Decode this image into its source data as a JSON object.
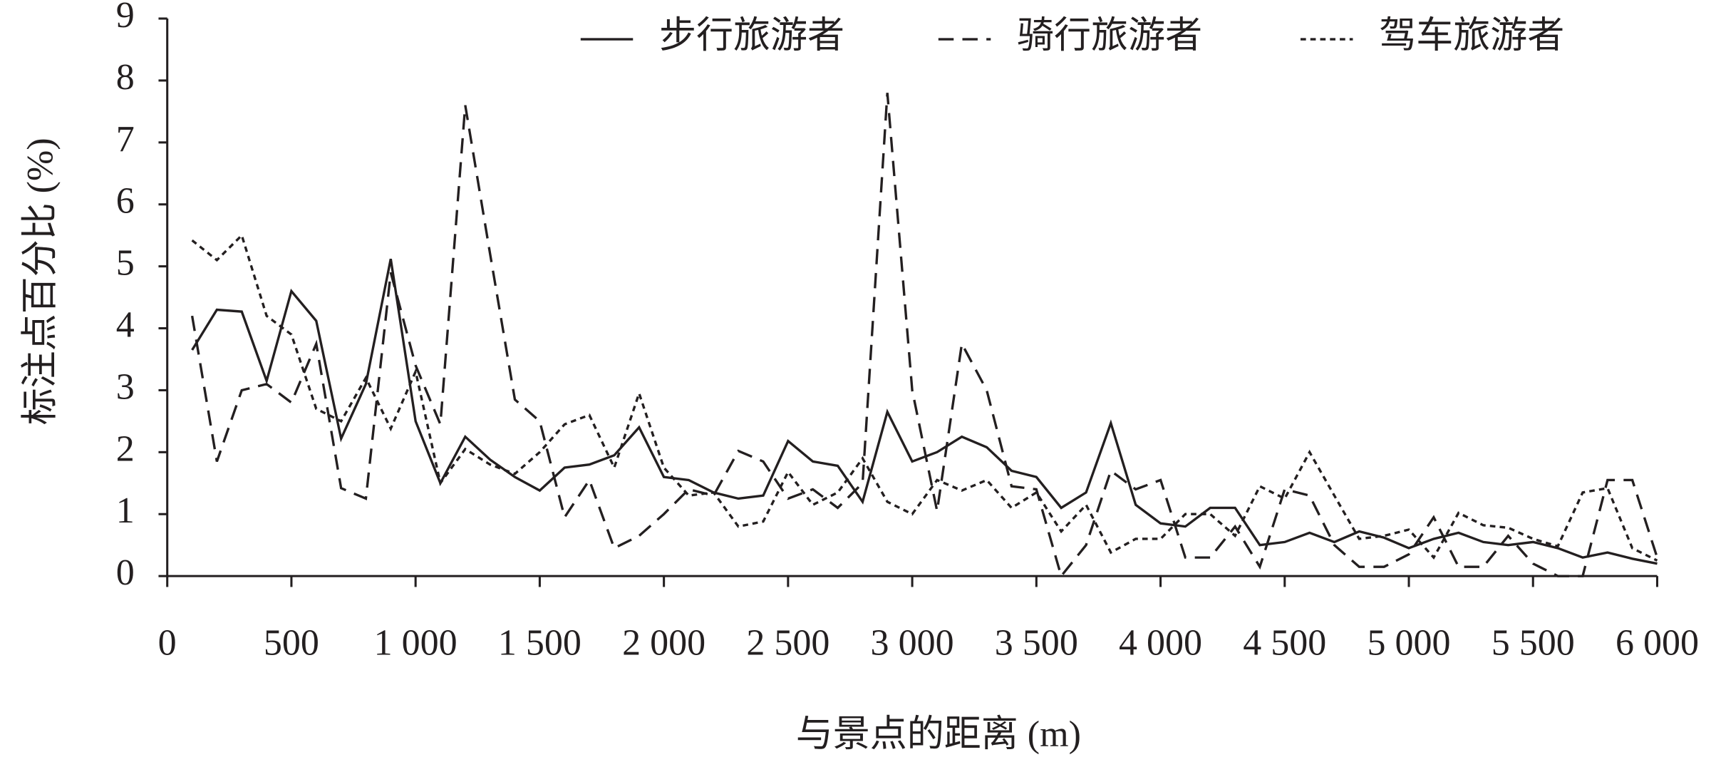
{
  "chart_data": {
    "type": "line",
    "xlabel": "与景点的距离 (m)",
    "ylabel": "标注点百分比 (%)",
    "x": [
      100,
      200,
      300,
      400,
      500,
      600,
      700,
      800,
      900,
      1000,
      1100,
      1200,
      1300,
      1400,
      1500,
      1600,
      1700,
      1800,
      1900,
      2000,
      2100,
      2200,
      2300,
      2400,
      2500,
      2600,
      2700,
      2800,
      2900,
      3000,
      3100,
      3200,
      3300,
      3400,
      3500,
      3600,
      3700,
      3800,
      3900,
      4000,
      4100,
      4200,
      4300,
      4400,
      4500,
      4600,
      4700,
      4800,
      4900,
      5000,
      5100,
      5200,
      5300,
      5400,
      5500,
      5600,
      5700,
      5800,
      5900,
      6000
    ],
    "series": [
      {
        "name": "步行旅游者",
        "color": "#231f20",
        "dash": "solid",
        "values": [
          3.65,
          4.3,
          4.27,
          3.15,
          4.6,
          4.12,
          2.22,
          3.1,
          5.12,
          2.5,
          1.5,
          2.25,
          1.88,
          1.6,
          1.38,
          1.75,
          1.8,
          1.95,
          2.4,
          1.6,
          1.55,
          1.35,
          1.25,
          1.3,
          2.18,
          1.85,
          1.78,
          1.2,
          2.65,
          1.85,
          2.0,
          2.25,
          2.08,
          1.7,
          1.6,
          1.1,
          1.35,
          2.47,
          1.15,
          0.85,
          0.8,
          1.1,
          1.1,
          0.5,
          0.55,
          0.7,
          0.55,
          0.72,
          0.62,
          0.45,
          0.6,
          0.7,
          0.55,
          0.5,
          0.55,
          0.45,
          0.3,
          0.38,
          0.28,
          0.2
        ]
      },
      {
        "name": "骑行旅游者",
        "color": "#231f20",
        "dash": "dashed",
        "values": [
          4.2,
          1.85,
          3.0,
          3.1,
          2.8,
          3.75,
          1.42,
          1.25,
          4.9,
          3.4,
          2.45,
          7.6,
          5.2,
          2.85,
          2.5,
          0.95,
          1.55,
          0.45,
          0.65,
          1.0,
          1.4,
          1.3,
          2.02,
          1.85,
          1.25,
          1.4,
          1.1,
          1.5,
          7.8,
          3.0,
          1.05,
          3.75,
          3.0,
          1.45,
          1.4,
          0.0,
          0.5,
          1.7,
          1.4,
          1.55,
          0.3,
          0.3,
          0.8,
          0.15,
          1.4,
          1.3,
          0.5,
          0.15,
          0.15,
          0.35,
          0.95,
          0.15,
          0.15,
          0.65,
          0.2,
          0.0,
          0.0,
          1.55,
          1.55,
          0.3
        ]
      },
      {
        "name": "驾车旅游者",
        "color": "#231f20",
        "dash": "dotted",
        "values": [
          5.42,
          5.1,
          5.5,
          4.2,
          3.9,
          2.7,
          2.5,
          3.2,
          2.38,
          3.3,
          1.5,
          2.05,
          1.8,
          1.65,
          2.0,
          2.45,
          2.6,
          1.75,
          2.95,
          1.75,
          1.3,
          1.35,
          0.8,
          0.88,
          1.68,
          1.15,
          1.35,
          1.9,
          1.2,
          1.0,
          1.55,
          1.38,
          1.55,
          1.1,
          1.35,
          0.72,
          1.15,
          0.38,
          0.6,
          0.6,
          1.0,
          1.0,
          0.65,
          1.45,
          1.25,
          2.0,
          1.3,
          0.6,
          0.65,
          0.75,
          0.3,
          1.02,
          0.82,
          0.78,
          0.6,
          0.48,
          1.35,
          1.42,
          0.45,
          0.25
        ]
      }
    ],
    "xlim": [
      0,
      6000
    ],
    "xticks": [
      0,
      500,
      {
        "value": 1000,
        "label": "1 000"
      },
      {
        "value": 1500,
        "label": "1 500"
      },
      {
        "value": 2000,
        "label": "2 000"
      },
      {
        "value": 2500,
        "label": "2 500"
      },
      {
        "value": 3000,
        "label": "3 000"
      },
      {
        "value": 3500,
        "label": "3 500"
      },
      {
        "value": 4000,
        "label": "4 000"
      },
      {
        "value": 4500,
        "label": "4 500"
      },
      {
        "value": 5000,
        "label": "5 000"
      },
      {
        "value": 5500,
        "label": "5 500"
      },
      {
        "value": 6000,
        "label": "6 000"
      }
    ],
    "ylim": [
      0,
      9
    ],
    "yticks": [
      0,
      1,
      2,
      3,
      4,
      5,
      6,
      7,
      8,
      9
    ],
    "grid": false,
    "legend": "upper-right"
  }
}
